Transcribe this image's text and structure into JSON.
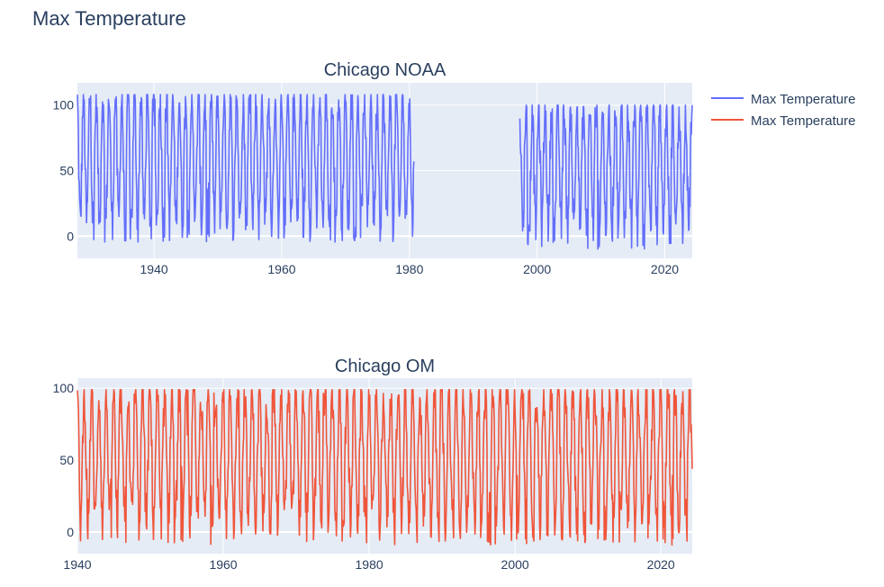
{
  "figure": {
    "title": "Max Temperature",
    "background": "#ffffff",
    "plot_background": "#e5ecf6",
    "grid_color": "#ffffff",
    "text_color": "#2a3f5f"
  },
  "legend": {
    "placement": "top-right",
    "items": [
      {
        "label": "Max Temperature",
        "color": "#636efa"
      },
      {
        "label": "Max Temperature",
        "color": "#ef553b"
      }
    ]
  },
  "chart_data": [
    {
      "type": "line",
      "title": "Chicago NOAA",
      "xlabel": "",
      "ylabel": "",
      "xlim": [
        1928.0,
        2024.3
      ],
      "ylim": [
        -17,
        117
      ],
      "x_ticks": [
        1940,
        1960,
        1980,
        2000,
        2020
      ],
      "y_ticks": [
        0,
        50,
        100
      ],
      "grid": true,
      "series": [
        {
          "color": "#636efa",
          "segments": [
            {
              "x": [
                1928.0,
                1980.7
              ],
              "range": [
                -6,
                108
              ],
              "pattern": "seasonal-annual"
            },
            {
              "x": [
                1997.3,
                2024.3
              ],
              "range": [
                -10,
                100
              ],
              "pattern": "seasonal-annual"
            }
          ]
        }
      ]
    },
    {
      "type": "line",
      "title": "Chicago OM",
      "xlabel": "",
      "ylabel": "",
      "xlim": [
        1940.0,
        2024.3
      ],
      "ylim": [
        -15,
        107
      ],
      "x_ticks": [
        1940,
        1960,
        1980,
        2000,
        2020
      ],
      "y_ticks": [
        0,
        50,
        100
      ],
      "grid": true,
      "series": [
        {
          "color": "#ef553b",
          "segments": [
            {
              "x": [
                1940.0,
                2024.3
              ],
              "range": [
                -9,
                99
              ],
              "pattern": "seasonal-annual"
            }
          ]
        }
      ]
    }
  ]
}
